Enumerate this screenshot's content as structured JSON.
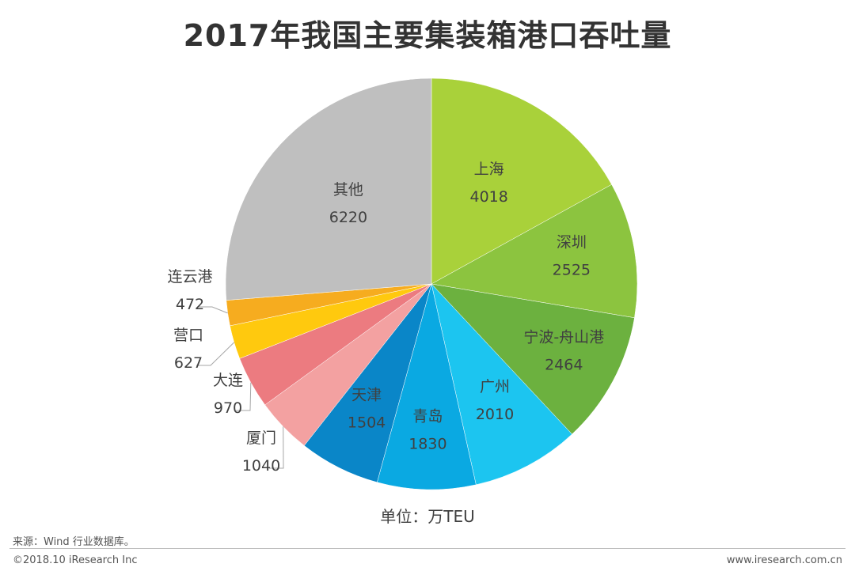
{
  "title": "2017年我国主要集装箱港口吞吐量",
  "unit_label": "单位：万TEU",
  "source": "来源：Wind 行业数据库。",
  "copyright": "©2018.10 iResearch Inc",
  "website": "www.iresearch.com.cn",
  "chart_data": {
    "type": "pie",
    "title": "2017年我国主要集装箱港口吞吐量",
    "unit": "万TEU",
    "slices": [
      {
        "label": "上海",
        "value": 4018,
        "color": "#a9d13a"
      },
      {
        "label": "深圳",
        "value": 2525,
        "color": "#8cc43f"
      },
      {
        "label": "宁波-舟山港",
        "value": 2464,
        "color": "#6cb13f"
      },
      {
        "label": "广州",
        "value": 2010,
        "color": "#1cc5f0"
      },
      {
        "label": "青岛",
        "value": 1830,
        "color": "#0aa9e2"
      },
      {
        "label": "天津",
        "value": 1504,
        "color": "#0a86c8"
      },
      {
        "label": "厦门",
        "value": 1040,
        "color": "#f3a1a1"
      },
      {
        "label": "大连",
        "value": 970,
        "color": "#ec7b80"
      },
      {
        "label": "营口",
        "value": 627,
        "color": "#ffc90e"
      },
      {
        "label": "连云港",
        "value": 472,
        "color": "#f6ac1f"
      },
      {
        "label": "其他",
        "value": 6220,
        "color": "#bfbfbf"
      }
    ]
  }
}
